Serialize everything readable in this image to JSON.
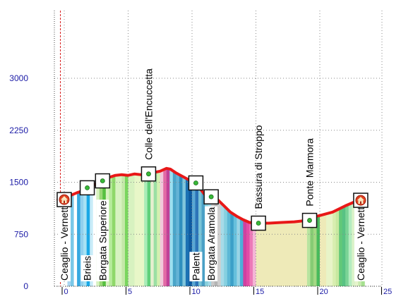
{
  "chart_data": {
    "type": "area",
    "title": "",
    "xlabel": "",
    "ylabel": "",
    "xlim": [
      -0.5,
      25
    ],
    "ylim": [
      0,
      3000
    ],
    "yticks": [
      0,
      750,
      1500,
      2250,
      3000
    ],
    "xticks": [
      0,
      5,
      10,
      15,
      20,
      25
    ],
    "grid": true,
    "start_marker_x": -0.3,
    "profile": {
      "x": [
        -0.5,
        0,
        0.5,
        1,
        1.5,
        2,
        2.5,
        3,
        3.5,
        4,
        4.5,
        5,
        5.5,
        6,
        6.5,
        7,
        7.5,
        8,
        8.3,
        8.7,
        9,
        9.5,
        10,
        10.5,
        11,
        11.5,
        12,
        12.5,
        13,
        13.5,
        14,
        14.5,
        15,
        16,
        17,
        18,
        19,
        19.5,
        20,
        21,
        22,
        22.5,
        23
      ],
      "y": [
        1250,
        1250,
        1310,
        1350,
        1380,
        1430,
        1480,
        1520,
        1570,
        1600,
        1610,
        1600,
        1620,
        1610,
        1620,
        1640,
        1660,
        1700,
        1690,
        1640,
        1610,
        1560,
        1510,
        1440,
        1320,
        1250,
        1250,
        1160,
        1070,
        1010,
        960,
        920,
        910,
        910,
        920,
        930,
        950,
        1000,
        1020,
        1070,
        1160,
        1200,
        1240
      ]
    },
    "bands": {
      "x_start": -0.5,
      "width": 0.25,
      "colors": [
        "#ffffff",
        "#ffffff",
        "#ffffff",
        "#aad4f0",
        "#7ac8e8",
        "#ffffff",
        "#36a8e0",
        "#90d0ee",
        "#a8e2f4",
        "#1aa8e6",
        "#c8ecf8",
        "#ffffff",
        "#d7f2c0",
        "#9ad876",
        "#56c040",
        "#d7f2c0",
        "#b7eb9c",
        "#8fd86a",
        "#d7f2c0",
        "#d7f2c0",
        "#c4e8a8",
        "#7ad65e",
        "#d7f2c0",
        "#d7f2c0",
        "#e8f7c8",
        "#e8f7c8",
        "#e8f7c8",
        "#aaecb8",
        "#5fd07a",
        "#e6efd0",
        "#9bdfa4",
        "#d4f0b0",
        "#f2c8dc",
        "#e26aa6",
        "#c04098",
        "#9de0f0",
        "#4aa4c8",
        "#64b3d6",
        "#2f8fbe",
        "#80c6dc",
        "#1c72b4",
        "#0e5aa0",
        "#5aa8d4",
        "#2d74b8",
        "#7ac4d8",
        "#4aa0c6",
        "#8ad0dc",
        "#a5d8e6",
        "#c8c8c8",
        "#b4b4b4",
        "#cfcfcf",
        "#a6dbe8",
        "#86d0e0",
        "#5cb8d6",
        "#3ca0c8",
        "#66c0dc",
        "#9ad4e6",
        "#4db0d8",
        "#d040a0",
        "#e24ca6",
        "#ec7ab8",
        "#f4b6d6",
        "#eeeab8",
        "#eeeab8",
        "#eeeab8",
        "#eeeab8",
        "#eeeab8",
        "#eeeab8",
        "#eeeab8",
        "#eeeab8",
        "#eeeab8",
        "#eeeab8",
        "#eeeab8",
        "#eeeab8",
        "#eeeab8",
        "#eeeab8",
        "#eeeab8",
        "#eeeab8",
        "#b8e4a0",
        "#86cc74",
        "#a4d884",
        "#48ba5c",
        "#eeeab8",
        "#eeeab8",
        "#e8f4c8",
        "#e8f4c8",
        "#d8eeb0",
        "#c8e8a0",
        "#62c878",
        "#58c284",
        "#7ad496",
        "#b4ecc0",
        "#daf2c8",
        "#e6f4cc",
        "#c8eab0",
        "#a6e090"
      ]
    },
    "line_color": "#e81818",
    "waypoints": [
      {
        "x": 0,
        "y": 1250,
        "icon": "home-icon",
        "label": "Ceaglio - Vernetti",
        "label_side": "below"
      },
      {
        "x": 1.8,
        "y": 1420,
        "icon": "flag-icon",
        "label": "Brieis",
        "label_side": "below"
      },
      {
        "x": 3.0,
        "y": 1520,
        "icon": "flag-icon",
        "label": "Borgata Superiore",
        "label_side": "below"
      },
      {
        "x": 6.6,
        "y": 1620,
        "icon": "flag-icon",
        "label": "Colle dell'Encuccetta",
        "label_side": "above"
      },
      {
        "x": 10.3,
        "y": 1490,
        "icon": "flag-icon",
        "label": "Palent",
        "label_side": "below"
      },
      {
        "x": 11.5,
        "y": 1290,
        "icon": "flag-icon",
        "label": "Borgata Aramola",
        "label_side": "below"
      },
      {
        "x": 15.2,
        "y": 910,
        "icon": "flag-icon",
        "label": "Bassura di Stroppo",
        "label_side": "above"
      },
      {
        "x": 19.2,
        "y": 950,
        "icon": "flag-icon",
        "label": "Ponte Marmora",
        "label_side": "above"
      },
      {
        "x": 23.2,
        "y": 1240,
        "icon": "home-icon",
        "label": "Ceaglio - Vernetti",
        "label_side": "below"
      }
    ]
  }
}
